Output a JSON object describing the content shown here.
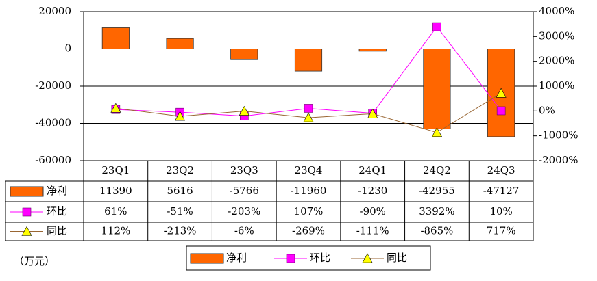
{
  "chart_data": {
    "type": "bar-line-table",
    "categories": [
      "23Q1",
      "23Q2",
      "23Q3",
      "23Q4",
      "24Q1",
      "24Q2",
      "24Q3"
    ],
    "series": [
      {
        "name": "净利",
        "type": "bar",
        "color": "#ff6600",
        "values": [
          11390,
          5616,
          -5766,
          -11960,
          -1230,
          -42955,
          -47127
        ]
      },
      {
        "name": "环比",
        "type": "line",
        "axis": "y2",
        "marker": "square",
        "color": "#ff00ff",
        "marker_color": "#ff00ff",
        "values": [
          61,
          -51,
          -203,
          107,
          -90,
          3392,
          10
        ],
        "value_labels": [
          "61%",
          "-51%",
          "-203%",
          "107%",
          "-90%",
          "3392%",
          "10%"
        ]
      },
      {
        "name": "同比",
        "type": "line",
        "axis": "y2",
        "marker": "triangle",
        "color": "#996633",
        "marker_color": "#ffff00",
        "values": [
          112,
          -213,
          -6,
          -269,
          -111,
          -865,
          717
        ],
        "value_labels": [
          "112%",
          "-213%",
          "-6%",
          "-269%",
          "-111%",
          "-865%",
          "717%"
        ]
      }
    ],
    "ylim": [
      -60000,
      20000
    ],
    "yticks": [
      -60000,
      -40000,
      -20000,
      0,
      20000
    ],
    "y2lim": [
      -2000,
      4000
    ],
    "y2ticks": [
      {
        "value": -2000,
        "label": "-2000%"
      },
      {
        "value": -1000,
        "label": "-1000%"
      },
      {
        "value": 0,
        "label": "0%"
      },
      {
        "value": 1000,
        "label": "1000%"
      },
      {
        "value": 2000,
        "label": "2000%"
      },
      {
        "value": 3000,
        "label": "3000%"
      },
      {
        "value": 4000,
        "label": "4000%"
      }
    ],
    "grid": true,
    "unit_note": "（万元）"
  }
}
